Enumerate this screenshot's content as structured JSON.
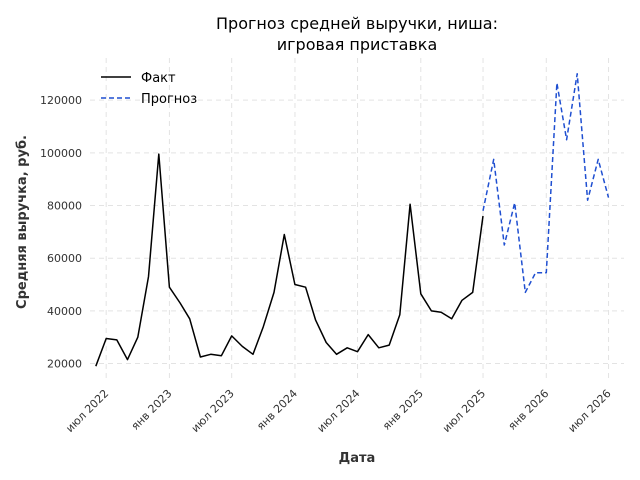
{
  "chart_data": {
    "type": "line",
    "title": [
      "Прогноз средней выручки, ниша:",
      "игровая приставка"
    ],
    "xlabel": "Дата",
    "ylabel": "Средняя выручка, руб.",
    "ylim": [
      13000,
      136000
    ],
    "xlim": [
      "2022-05-15",
      "2026-08-15"
    ],
    "grid": true,
    "legend_position": "top-left",
    "x_ticks": [
      {
        "date": "2022-07-01",
        "label": "июл 2022"
      },
      {
        "date": "2023-01-01",
        "label": "янв 2023"
      },
      {
        "date": "2023-07-01",
        "label": "июл 2023"
      },
      {
        "date": "2024-01-01",
        "label": "янв 2024"
      },
      {
        "date": "2024-07-01",
        "label": "июл 2024"
      },
      {
        "date": "2025-01-01",
        "label": "янв 2025"
      },
      {
        "date": "2025-07-01",
        "label": "июл 2025"
      },
      {
        "date": "2026-01-01",
        "label": "янв 2026"
      },
      {
        "date": "2026-07-01",
        "label": "июл 2026"
      }
    ],
    "y_ticks": [
      {
        "value": 20000,
        "label": "20000"
      },
      {
        "value": 40000,
        "label": "40000"
      },
      {
        "value": 60000,
        "label": "60000"
      },
      {
        "value": 80000,
        "label": "80000"
      },
      {
        "value": 100000,
        "label": "100000"
      },
      {
        "value": 120000,
        "label": "120000"
      }
    ],
    "series": [
      {
        "name": "Факт",
        "color": "#000000",
        "dash": "solid",
        "points": [
          [
            "2022-06-01",
            19000
          ],
          [
            "2022-07-01",
            29500
          ],
          [
            "2022-08-01",
            29000
          ],
          [
            "2022-09-01",
            21500
          ],
          [
            "2022-10-01",
            30000
          ],
          [
            "2022-11-01",
            53000
          ],
          [
            "2022-12-01",
            99500
          ],
          [
            "2023-01-01",
            49000
          ],
          [
            "2023-02-01",
            43000
          ],
          [
            "2023-03-01",
            37000
          ],
          [
            "2023-04-01",
            22500
          ],
          [
            "2023-05-01",
            23500
          ],
          [
            "2023-06-01",
            23000
          ],
          [
            "2023-07-01",
            30500
          ],
          [
            "2023-08-01",
            26500
          ],
          [
            "2023-09-01",
            23500
          ],
          [
            "2023-10-01",
            34000
          ],
          [
            "2023-11-01",
            47000
          ],
          [
            "2023-12-01",
            69000
          ],
          [
            "2024-01-01",
            50000
          ],
          [
            "2024-02-01",
            49000
          ],
          [
            "2024-03-01",
            36500
          ],
          [
            "2024-04-01",
            28000
          ],
          [
            "2024-05-01",
            23500
          ],
          [
            "2024-06-01",
            26000
          ],
          [
            "2024-07-01",
            24500
          ],
          [
            "2024-08-01",
            31000
          ],
          [
            "2024-09-01",
            26000
          ],
          [
            "2024-10-01",
            27000
          ],
          [
            "2024-11-01",
            38500
          ],
          [
            "2024-12-01",
            80500
          ],
          [
            "2025-01-01",
            46500
          ],
          [
            "2025-02-01",
            40000
          ],
          [
            "2025-03-01",
            39500
          ],
          [
            "2025-04-01",
            37000
          ],
          [
            "2025-05-01",
            44000
          ],
          [
            "2025-06-01",
            47000
          ],
          [
            "2025-07-01",
            76000
          ]
        ]
      },
      {
        "name": "Прогноз",
        "color": "#1f4fd1",
        "dash": "dashed",
        "points": [
          [
            "2025-07-01",
            78000
          ],
          [
            "2025-08-01",
            97500
          ],
          [
            "2025-09-01",
            65000
          ],
          [
            "2025-10-01",
            81000
          ],
          [
            "2025-11-01",
            47000
          ],
          [
            "2025-12-01",
            54500
          ],
          [
            "2026-01-01",
            54500
          ],
          [
            "2026-02-01",
            126500
          ],
          [
            "2026-03-01",
            105000
          ],
          [
            "2026-04-01",
            130000
          ],
          [
            "2026-05-01",
            82000
          ],
          [
            "2026-06-01",
            97500
          ],
          [
            "2026-07-01",
            83000
          ]
        ]
      }
    ]
  }
}
